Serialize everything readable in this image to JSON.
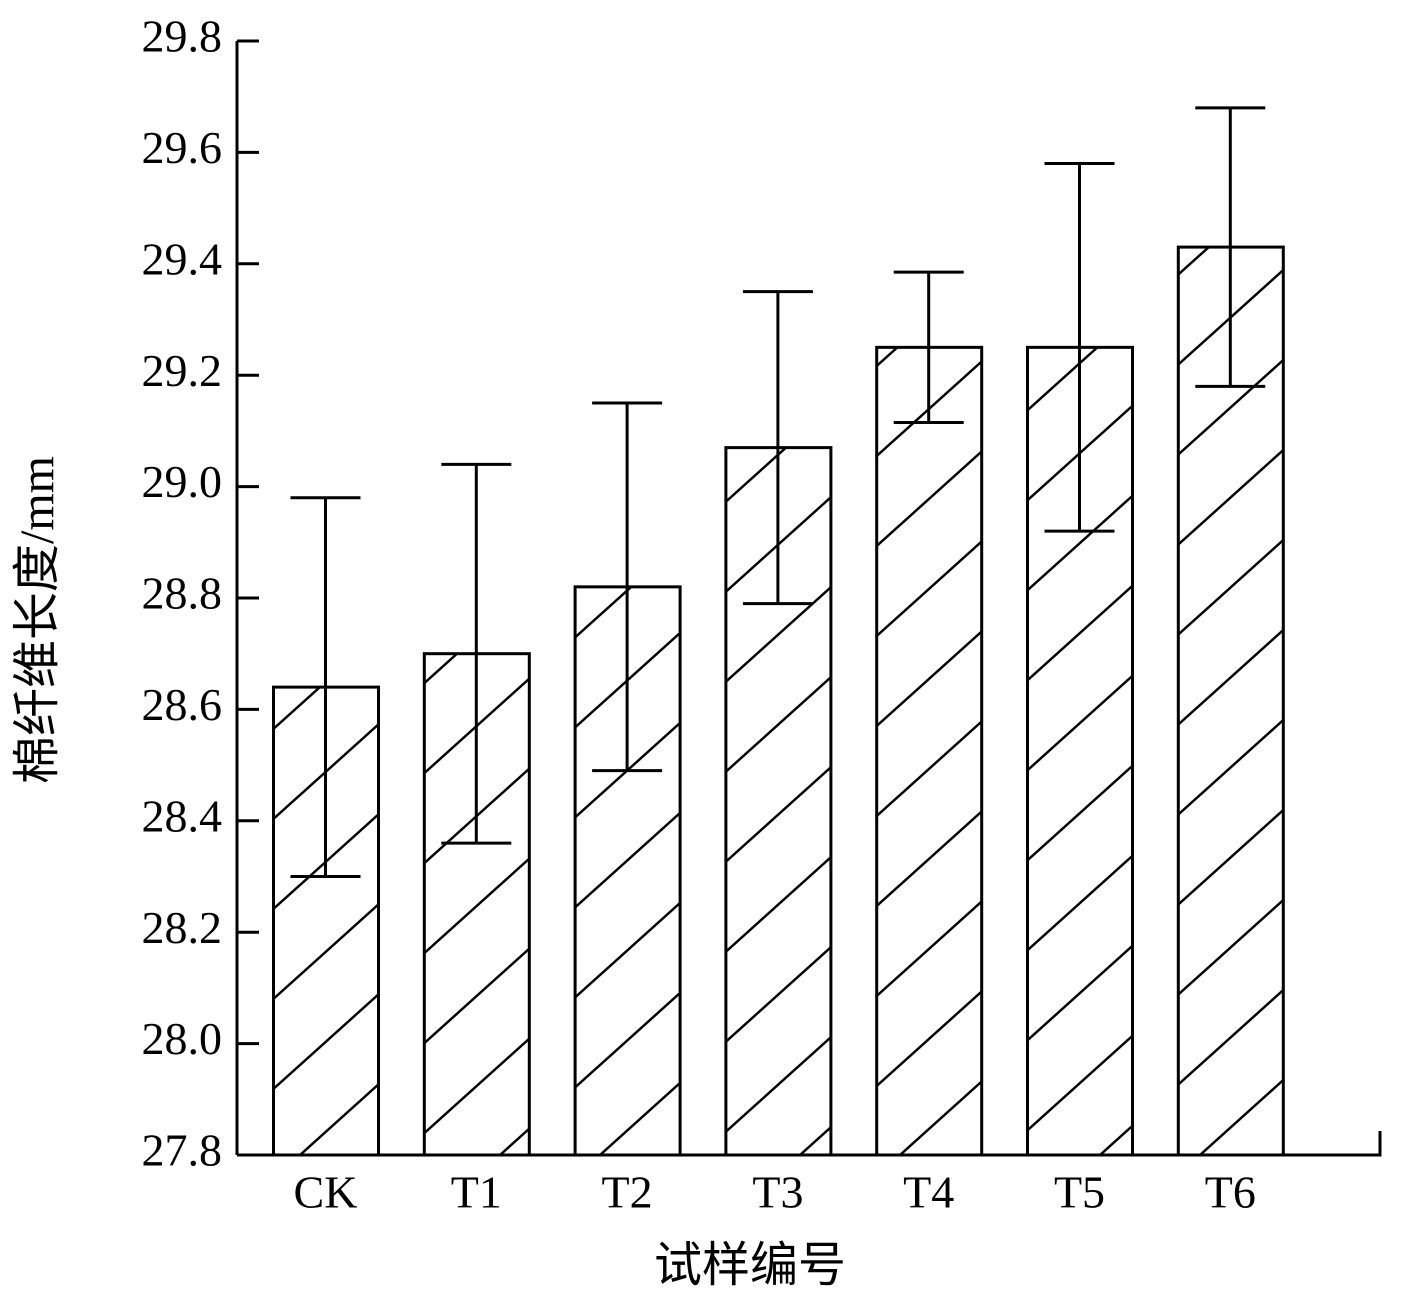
{
  "chart_data": {
    "type": "bar",
    "x_label": "试样编号",
    "y_label": "棉纤维长度/mm",
    "categories": [
      "CK",
      "T1",
      "T2",
      "T3",
      "T4",
      "T5",
      "T6"
    ],
    "series": [
      {
        "values": [
          28.64,
          28.7,
          28.82,
          29.07,
          29.25,
          29.25,
          29.43
        ],
        "errors": [
          0.34,
          0.34,
          0.33,
          0.28,
          0.135,
          0.33,
          0.25
        ],
        "color": "#000000"
      }
    ],
    "ylim": [
      27.8,
      29.8
    ],
    "yticks": [
      27.8,
      {
        "value": 28,
        "label": "28.0"
      },
      28.2,
      28.4,
      28.6,
      28.8,
      {
        "value": 29,
        "label": "29.0"
      },
      29.2,
      29.4,
      29.6,
      29.8
    ],
    "hatch": "diagonal"
  }
}
